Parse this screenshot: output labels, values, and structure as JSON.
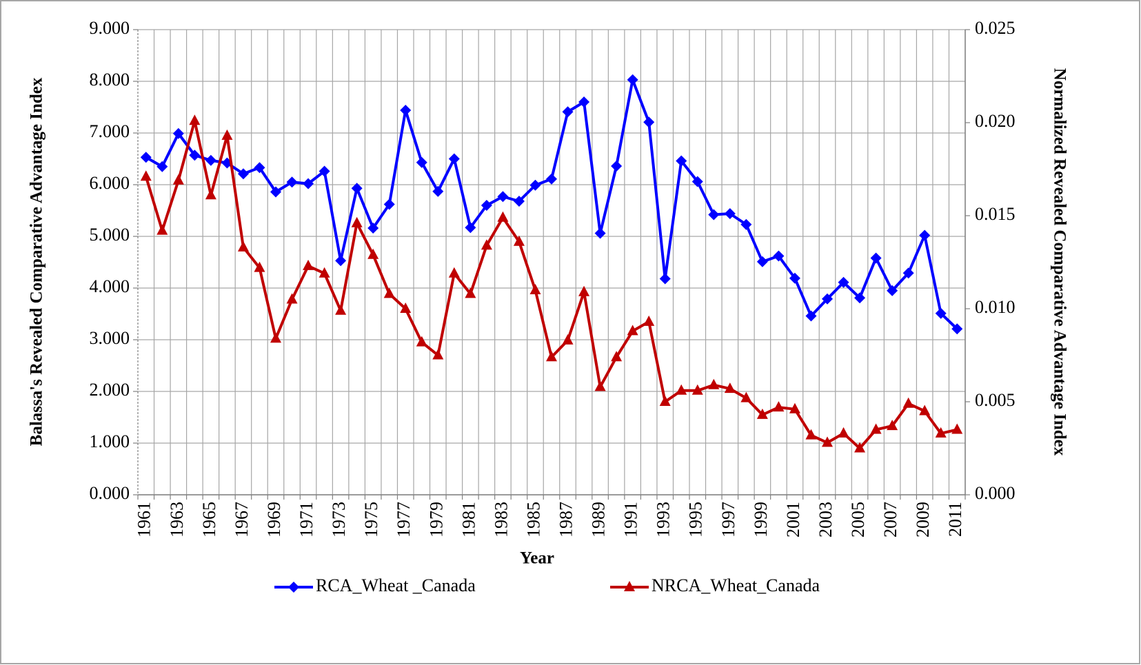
{
  "chart_data": {
    "type": "line",
    "x_label": "Year",
    "y_label": "Balassa's Revealed Comparative Advantage Index",
    "y2_label": "Normalized Revealed Comparative Advantage Index",
    "categories": [
      "1961",
      null,
      "1963",
      null,
      "1965",
      null,
      "1967",
      null,
      "1969",
      null,
      "1971",
      null,
      "1973",
      null,
      "1975",
      null,
      "1977",
      null,
      "1979",
      null,
      "1981",
      null,
      "1983",
      null,
      "1985",
      null,
      "1987",
      null,
      "1989",
      null,
      "1991",
      null,
      "1993",
      null,
      "1995",
      null,
      "1997",
      null,
      "1999",
      null,
      "2001",
      null,
      "2003",
      null,
      "2005",
      null,
      "2007",
      null,
      "2009",
      null,
      "2011"
    ],
    "series": [
      {
        "name": "RCA_Wheat _Canada",
        "color": "#0000ff",
        "marker": "diamond",
        "axis": "y",
        "values": [
          6.53,
          6.35,
          6.99,
          6.57,
          6.47,
          6.42,
          6.21,
          6.33,
          5.86,
          6.05,
          6.02,
          6.26,
          4.53,
          5.93,
          5.16,
          5.62,
          7.44,
          6.43,
          5.87,
          6.5,
          5.17,
          5.6,
          5.77,
          5.68,
          5.99,
          6.11,
          7.41,
          7.6,
          5.06,
          6.36,
          8.03,
          7.21,
          4.18,
          6.46,
          6.06,
          5.42,
          5.44,
          5.23,
          4.51,
          4.62,
          4.19,
          3.46,
          3.79,
          4.11,
          3.81,
          4.58,
          3.95,
          4.29,
          5.02,
          3.51,
          3.21
        ]
      },
      {
        "name": "NRCA_Wheat_Canada",
        "color": "#c00000",
        "marker": "triangle",
        "axis": "y2",
        "values": [
          0.0171,
          0.0142,
          0.0169,
          0.0201,
          0.0161,
          0.0193,
          0.0133,
          0.0122,
          0.0084,
          0.0105,
          0.0123,
          0.0119,
          0.0099,
          0.0146,
          0.0129,
          0.0108,
          0.01,
          0.0082,
          0.0075,
          0.0119,
          0.0108,
          0.0134,
          0.0149,
          0.0136,
          0.011,
          0.0074,
          0.0083,
          0.0109,
          0.0058,
          0.0074,
          0.0088,
          0.0093,
          0.005,
          0.0056,
          0.0056,
          0.0059,
          0.0057,
          0.0052,
          0.0043,
          0.0047,
          0.0046,
          0.0032,
          0.0028,
          0.0033,
          0.0025,
          0.0035,
          0.0037,
          0.0049,
          0.0045,
          0.0033,
          0.0035
        ]
      }
    ],
    "ylim": [
      0,
      9
    ],
    "yticks": [
      {
        "value": 0,
        "label": "0.000"
      },
      {
        "value": 1,
        "label": "1.000"
      },
      {
        "value": 2,
        "label": "2.000"
      },
      {
        "value": 3,
        "label": "3.000"
      },
      {
        "value": 4,
        "label": "4.000"
      },
      {
        "value": 5,
        "label": "5.000"
      },
      {
        "value": 6,
        "label": "6.000"
      },
      {
        "value": 7,
        "label": "7.000"
      },
      {
        "value": 8,
        "label": "8.000"
      },
      {
        "value": 9,
        "label": "9.000"
      }
    ],
    "y2lim": [
      0,
      0.025
    ],
    "y2ticks": [
      {
        "value": 0,
        "label": "0.000"
      },
      0.005,
      {
        "value": 0.01,
        "label": "0.010"
      },
      0.015,
      {
        "value": 0.02,
        "label": "0.020"
      },
      0.025
    ],
    "grid": true,
    "legend": "bottom"
  }
}
